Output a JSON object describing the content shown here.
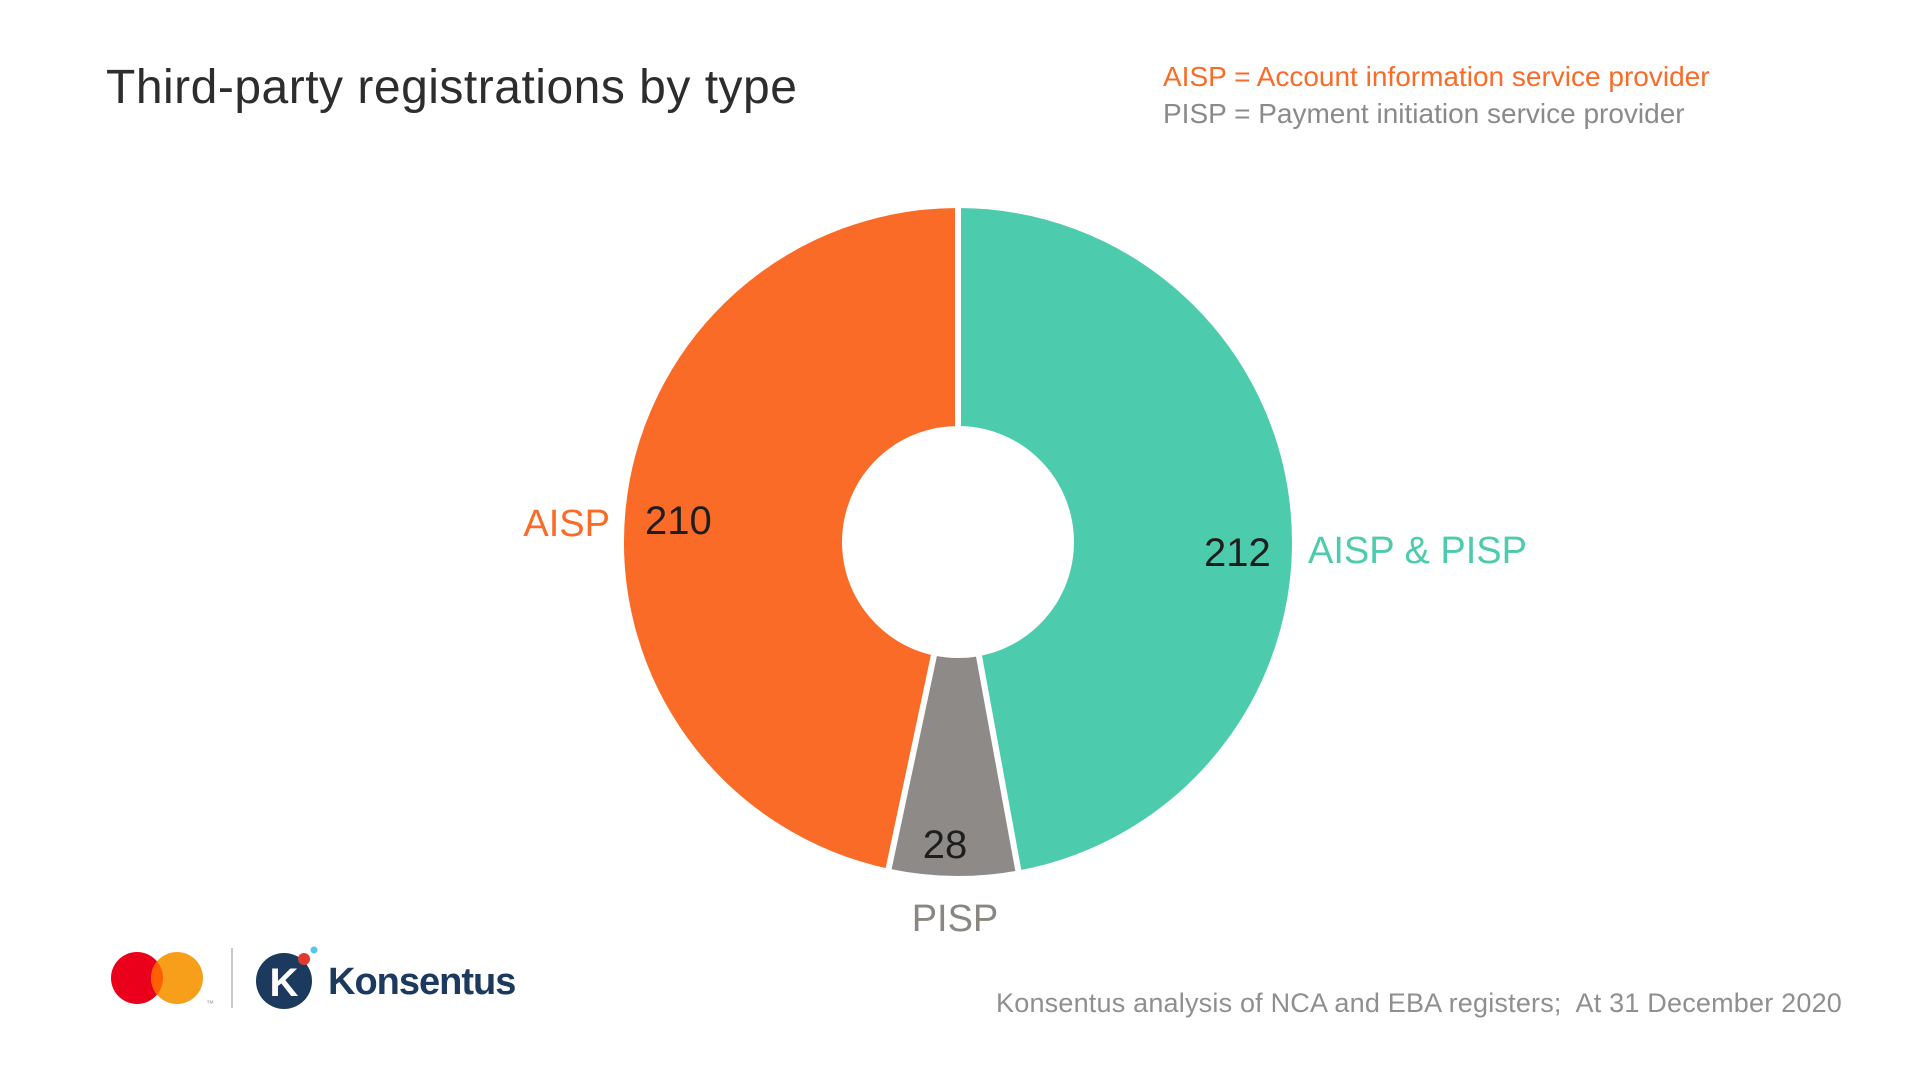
{
  "title": "Third-party registrations by type",
  "legend": {
    "items": [
      {
        "text": "AISP = Account information service provider",
        "color": "#F96B27"
      },
      {
        "text": "PISP = Payment initiation service provider",
        "color": "#8A8A8A"
      }
    ]
  },
  "chart_data": {
    "type": "pie",
    "variant": "donut",
    "title": "Third-party registrations by type",
    "total": 450,
    "start_angle_deg": 0,
    "direction": "clockwise",
    "inner_radius_ratio": 0.335,
    "separator_color": "#FFFFFF",
    "slices": [
      {
        "label": "AISP & PISP",
        "value": 212,
        "color": "#4DCBAD"
      },
      {
        "label": "PISP",
        "value": 28,
        "color": "#8D8A87"
      },
      {
        "label": "AISP",
        "value": 210,
        "color": "#F96B27"
      }
    ]
  },
  "callouts": {
    "aisp": {
      "label": "AISP",
      "value": "210",
      "label_color": "#F96B27"
    },
    "aisp_pisp": {
      "label": "AISP & PISP",
      "value": "212",
      "label_color": "#4DCBAD"
    },
    "pisp": {
      "label": "PISP",
      "value": "28",
      "label_color": "#8A8680"
    }
  },
  "footer": {
    "source_text": "Konsentus analysis of NCA and EBA registers;  At 31 December 2020",
    "logos": {
      "mastercard": {
        "name": "Mastercard",
        "red": "#EB001B",
        "orange": "#F79E1B",
        "overlap": "#FF5F00",
        "tm": "™"
      },
      "konsentus": {
        "monogram": "K",
        "wordmark": "Konsentus",
        "navy": "#1C3A5E",
        "dot_red": "#E0392E",
        "dot_blue": "#53C7EC"
      }
    }
  }
}
